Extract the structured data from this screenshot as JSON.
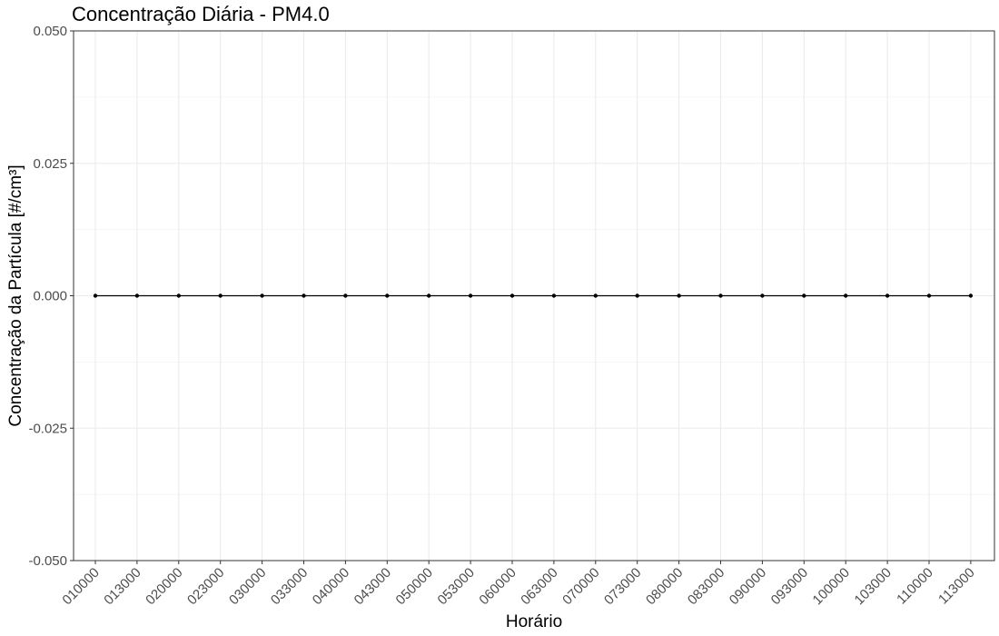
{
  "chart_data": {
    "type": "line",
    "title": "Concentração Diária - PM4.0",
    "xlabel": "Horário",
    "ylabel": "Concentração da Partícula [#/cm³]",
    "categories": [
      "010000",
      "013000",
      "020000",
      "023000",
      "030000",
      "033000",
      "040000",
      "043000",
      "050000",
      "053000",
      "060000",
      "063000",
      "070000",
      "073000",
      "080000",
      "083000",
      "090000",
      "093000",
      "100000",
      "103000",
      "110000",
      "113000"
    ],
    "series": [
      {
        "values": [
          0,
          0,
          0,
          0,
          0,
          0,
          0,
          0,
          0,
          0,
          0,
          0,
          0,
          0,
          0,
          0,
          0,
          0,
          0,
          0,
          0,
          0
        ]
      }
    ],
    "ylim": [
      -0.05,
      0.05
    ],
    "yticks": [
      -0.05,
      -0.025,
      0,
      0.025,
      0.05
    ],
    "ytick_labels": [
      "-0.050",
      "-0.025",
      "0.000",
      "0.025",
      "0.050"
    ],
    "grid": true,
    "line_color": "#000000",
    "grid_color": "#ebebeb",
    "panel_border_color": "#333333"
  }
}
